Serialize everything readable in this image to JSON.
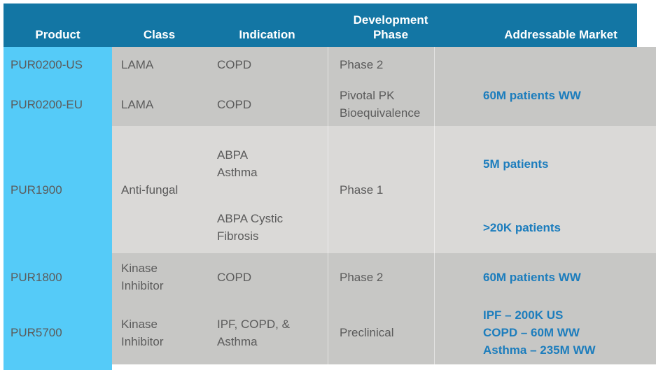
{
  "title": "Product pipeline table",
  "colors": {
    "header_bg": "#1376A4",
    "product_column_bg": "#55CBF8",
    "row_dark": "#C7C7C5",
    "row_light": "#DAD9D7",
    "body_text": "#5B5B5B",
    "market_text": "#1C7DBD",
    "header_text": "#FFFFFF"
  },
  "header": {
    "columns": [
      "Product",
      "Class",
      "Indication",
      "Development Phase",
      "Addressable Market"
    ]
  },
  "groups": [
    {
      "products": [
        "PUR0200-US",
        "PUR0200-EU"
      ],
      "classes": [
        "LAMA",
        "LAMA"
      ],
      "indications": [
        "COPD",
        "COPD"
      ],
      "phases": [
        "Phase 2",
        "Pivotal PK\nBioequivalence"
      ],
      "market": "60M patients WW"
    },
    {
      "product": "PUR1900",
      "class": "Anti-fungal",
      "phase": "Phase 1",
      "indications": [
        "ABPA\nAsthma",
        "ABPA Cystic\nFibrosis"
      ],
      "markets": [
        "5M patients",
        ">20K patients"
      ]
    },
    {
      "product": "PUR1800",
      "class": "Kinase\nInhibitor",
      "indication": "COPD",
      "phase": "Phase 2",
      "market": "60M patients WW"
    },
    {
      "product": "PUR5700",
      "class": "Kinase\nInhibitor",
      "indication": "IPF, COPD, &\nAsthma",
      "phase": "Preclinical",
      "market": "IPF – 200K US\nCOPD – 60M WW\nAsthma – 235M WW"
    }
  ],
  "chart_data": {
    "type": "table",
    "title": "Product pipeline",
    "columns": [
      "Product",
      "Class",
      "Indication",
      "Development Phase",
      "Addressable Market"
    ],
    "rows": [
      [
        "PUR0200-US",
        "LAMA",
        "COPD",
        "Phase 2",
        "60M patients WW"
      ],
      [
        "PUR0200-EU",
        "LAMA",
        "COPD",
        "Pivotal PK Bioequivalence",
        "60M patients WW"
      ],
      [
        "PUR1900",
        "Anti-fungal",
        "ABPA Asthma",
        "Phase 1",
        "5M patients"
      ],
      [
        "PUR1900",
        "Anti-fungal",
        "ABPA Cystic Fibrosis",
        "Phase 1",
        ">20K patients"
      ],
      [
        "PUR1800",
        "Kinase Inhibitor",
        "COPD",
        "Phase 2",
        "60M patients WW"
      ],
      [
        "PUR5700",
        "Kinase Inhibitor",
        "IPF, COPD, & Asthma",
        "Preclinical",
        "IPF – 200K US; COPD – 60M WW; Asthma – 235M WW"
      ]
    ]
  }
}
